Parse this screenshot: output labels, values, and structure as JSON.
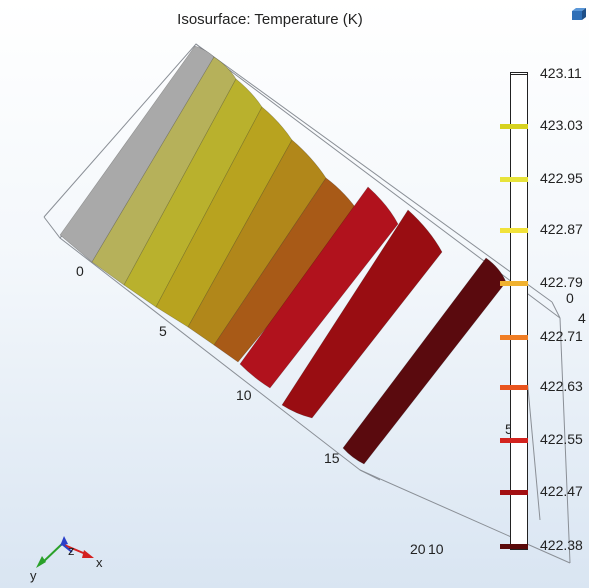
{
  "plot": {
    "title": "Isosurface: Temperature (K)",
    "x_ticks": [
      "0",
      "5",
      "10",
      "15",
      "20"
    ],
    "right_axis_ticks": [
      "0",
      "4",
      "5",
      "10"
    ],
    "triad": {
      "y": "y",
      "z": "z",
      "x": "x"
    }
  },
  "colorbar": {
    "labels": [
      "423.11",
      "423.03",
      "422.95",
      "422.87",
      "422.79",
      "422.71",
      "422.63",
      "422.55",
      "422.47",
      "422.38"
    ],
    "tick_colors": [
      "#222222",
      "#d7d21f",
      "#e7e33a",
      "#f1e23a",
      "#f0b12f",
      "#f07d24",
      "#e9541e",
      "#d3231e",
      "#a30f12",
      "#5b0a0a"
    ]
  },
  "isosurfaces": {
    "colors": [
      "#a9a9a9",
      "#b6b15a",
      "#b9b12d",
      "#b8a31f",
      "#b1871a",
      "#a85a17",
      "#9f3717",
      "#b1121d",
      "#990d12",
      "#7a0a10",
      "#5a0a0e"
    ]
  },
  "toolbar": {
    "icon": "cube-icon"
  }
}
